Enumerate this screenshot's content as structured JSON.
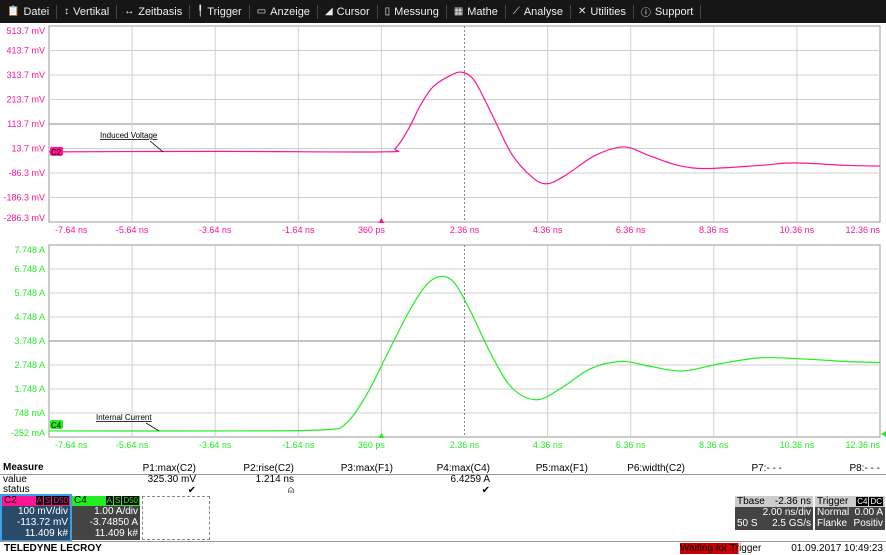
{
  "menu": [
    {
      "label": "Datei",
      "icon": "clipboard-icon"
    },
    {
      "label": "Vertikal",
      "icon": "vertical-arrows-icon"
    },
    {
      "label": "Zeitbasis",
      "icon": "horizontal-arrows-icon"
    },
    {
      "label": "Trigger",
      "icon": "trigger-icon"
    },
    {
      "label": "Anzeige",
      "icon": "display-icon"
    },
    {
      "label": "Cursor",
      "icon": "cursor-icon"
    },
    {
      "label": "Messung",
      "icon": "measure-icon"
    },
    {
      "label": "Mathe",
      "icon": "calculator-icon"
    },
    {
      "label": "Analyse",
      "icon": "chart-icon"
    },
    {
      "label": "Utilities",
      "icon": "tools-icon"
    },
    {
      "label": "Support",
      "icon": "info-icon"
    }
  ],
  "colors": {
    "c2": "#ff1493",
    "c4": "#22ee22",
    "grid": "#d0d0d0"
  },
  "chart_data": [
    {
      "type": "line",
      "channel": "C2",
      "label": "Induced Voltage",
      "unit": "mV",
      "yticks": [
        "513.7 mV",
        "413.7 mV",
        "313.7 mV",
        "213.7 mV",
        "113.7 mV",
        "13.7 mV",
        "-86.3 mV",
        "-186.3 mV",
        "-286.3 mV"
      ],
      "ylim": [
        -286.3,
        513.7
      ],
      "xticks": [
        "-7.64 ns",
        "-5.64 ns",
        "-3.64 ns",
        "-1.64 ns",
        "360 ps",
        "2.36 ns",
        "4.36 ns",
        "6.36 ns",
        "8.36 ns",
        "10.36 ns",
        "12.36 ns"
      ],
      "xlim": [
        -7.64,
        12.36
      ],
      "x": [
        -7.64,
        -3.5,
        0.4,
        0.7,
        1.0,
        1.3,
        1.6,
        2.0,
        2.3,
        2.6,
        3.0,
        3.5,
        4.0,
        4.35,
        4.8,
        5.5,
        6.2,
        6.8,
        7.5,
        8.2,
        9.5,
        10.3,
        11.5,
        12.36
      ],
      "y": [
        0,
        2,
        0,
        15,
        90,
        190,
        265,
        310,
        325,
        290,
        160,
        -10,
        -105,
        -130,
        -95,
        -15,
        20,
        -15,
        -55,
        -68,
        -55,
        -45,
        -55,
        -58
      ]
    },
    {
      "type": "line",
      "channel": "C4",
      "label": "Internal Current",
      "unit": "A",
      "yticks": [
        "7.748 A",
        "6.748 A",
        "5.748 A",
        "4.748 A",
        "3.748 A",
        "2.748 A",
        "1.748 A",
        "748 mA",
        "-252 mA"
      ],
      "ylim": [
        -0.252,
        7.748
      ],
      "xticks": [
        "-7.64 ns",
        "-5.64 ns",
        "-3.64 ns",
        "-1.64 ns",
        "360 ps",
        "2.36 ns",
        "4.36 ns",
        "6.36 ns",
        "8.36 ns",
        "10.36 ns",
        "12.36 ns"
      ],
      "xlim": [
        -7.64,
        12.36
      ],
      "x": [
        -7.64,
        -3.0,
        -1.0,
        -0.5,
        0.0,
        0.5,
        1.0,
        1.4,
        1.75,
        2.1,
        2.5,
        3.0,
        3.5,
        4.1,
        4.7,
        5.4,
        6.15,
        6.8,
        7.6,
        8.5,
        9.5,
        10.5,
        11.5,
        12.36
      ],
      "y": [
        0,
        0,
        0.05,
        0.3,
        1.5,
        3.2,
        4.9,
        6.0,
        6.43,
        6.2,
        5.0,
        3.2,
        1.8,
        1.3,
        1.8,
        2.6,
        2.9,
        2.7,
        2.5,
        2.8,
        3.05,
        3.0,
        2.9,
        2.85
      ]
    }
  ],
  "measure": {
    "title": "Measure",
    "row_value": "value",
    "row_status": "status",
    "params": [
      {
        "name": "P1:max(C2)",
        "value": "325.30 mV",
        "status": "✔"
      },
      {
        "name": "P2:rise(C2)",
        "value": "1.214 ns",
        "status": "⍝"
      },
      {
        "name": "P3:max(F1)",
        "value": "",
        "status": ""
      },
      {
        "name": "P4:max(C4)",
        "value": "6.4259 A",
        "status": "✔"
      },
      {
        "name": "P5:max(F1)",
        "value": "",
        "status": ""
      },
      {
        "name": "P6:width(C2)",
        "value": "",
        "status": ""
      },
      {
        "name": "P7:- - -",
        "value": "",
        "status": ""
      },
      {
        "name": "P8:- - -",
        "value": "",
        "status": ""
      }
    ]
  },
  "channels": [
    {
      "name": "C2",
      "tags": [
        "A",
        "S",
        "D50"
      ],
      "vdiv": "100 mV/div",
      "offset": "-113.72 mV",
      "count": "11.409 k#"
    },
    {
      "name": "C4",
      "tags": [
        "A",
        "S",
        "D50"
      ],
      "vdiv": "1.00 A/div",
      "offset": "-3.74850 A",
      "count": "11.409 k#"
    }
  ],
  "timebase": {
    "label": "Tbase",
    "delay": "-2.36 ns",
    "tdiv": "2.00 ns/div",
    "samples": "50 S",
    "rate": "2.5 GS/s"
  },
  "trigger": {
    "label": "Trigger",
    "source": "C4",
    "coupling": "DC",
    "mode": "Normal",
    "level": "0.00 A",
    "type": "Flanke",
    "slope": "Positiv"
  },
  "footer": {
    "brand": "TELEDYNE LECROY",
    "status": "Waiting for Trigger",
    "datetime": "01.09.2017 10:49:23"
  }
}
